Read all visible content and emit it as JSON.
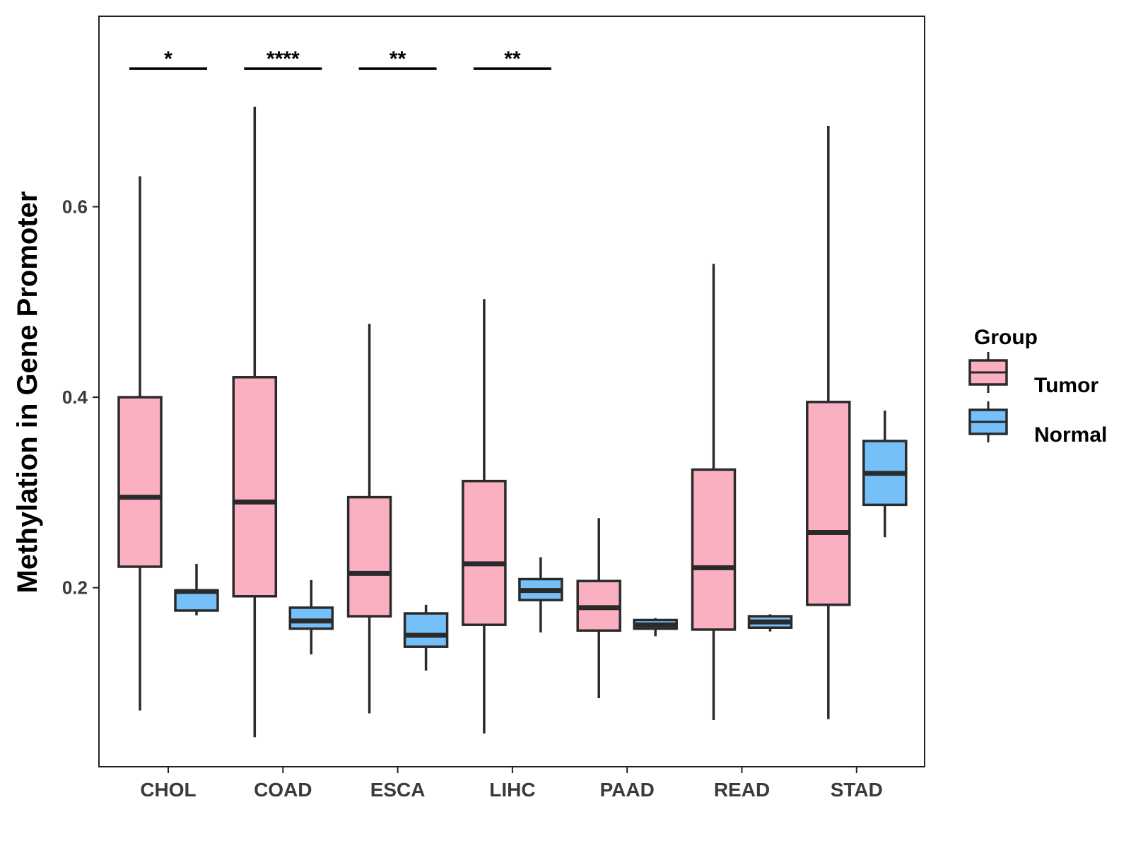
{
  "chart_data": {
    "type": "boxplot",
    "title": "",
    "xlabel": "",
    "ylabel": "Methylation in Gene Promoter",
    "ylim": [
      0.012,
      0.8
    ],
    "yticks": [
      {
        "value": 0.2,
        "label": "0.2"
      },
      {
        "value": 0.4,
        "label": "0.4"
      },
      {
        "value": 0.6,
        "label": "0.6"
      }
    ],
    "categories": [
      "CHOL",
      "COAD",
      "ESCA",
      "LIHC",
      "PAAD",
      "READ",
      "STAD"
    ],
    "legend": {
      "title": "Group",
      "position": "right",
      "entries": [
        {
          "label": "Tumor",
          "color": "#fbb0c2"
        },
        {
          "label": "Normal",
          "color": "#75c0f9"
        }
      ]
    },
    "series": [
      {
        "name": "Tumor",
        "color": "#fbb0c2",
        "boxes": [
          {
            "min": 0.071,
            "q1": 0.222,
            "median": 0.295,
            "q3": 0.4,
            "max": 0.632
          },
          {
            "min": 0.043,
            "q1": 0.191,
            "median": 0.29,
            "q3": 0.421,
            "max": 0.705
          },
          {
            "min": 0.068,
            "q1": 0.17,
            "median": 0.215,
            "q3": 0.295,
            "max": 0.477
          },
          {
            "min": 0.047,
            "q1": 0.161,
            "median": 0.225,
            "q3": 0.312,
            "max": 0.503
          },
          {
            "min": 0.084,
            "q1": 0.155,
            "median": 0.179,
            "q3": 0.207,
            "max": 0.273
          },
          {
            "min": 0.061,
            "q1": 0.156,
            "median": 0.221,
            "q3": 0.324,
            "max": 0.54
          },
          {
            "min": 0.062,
            "q1": 0.182,
            "median": 0.258,
            "q3": 0.395,
            "max": 0.685
          }
        ]
      },
      {
        "name": "Normal",
        "color": "#75c0f9",
        "boxes": [
          {
            "min": 0.171,
            "q1": 0.176,
            "median": 0.196,
            "q3": 0.197,
            "max": 0.225
          },
          {
            "min": 0.13,
            "q1": 0.157,
            "median": 0.165,
            "q3": 0.179,
            "max": 0.208
          },
          {
            "min": 0.113,
            "q1": 0.138,
            "median": 0.15,
            "q3": 0.173,
            "max": 0.182
          },
          {
            "min": 0.153,
            "q1": 0.187,
            "median": 0.197,
            "q3": 0.209,
            "max": 0.232
          },
          {
            "min": 0.149,
            "q1": 0.157,
            "median": 0.161,
            "q3": 0.166,
            "max": 0.168
          },
          {
            "min": 0.154,
            "q1": 0.158,
            "median": 0.164,
            "q3": 0.17,
            "max": 0.172
          },
          {
            "min": 0.253,
            "q1": 0.287,
            "median": 0.32,
            "q3": 0.354,
            "max": 0.386
          }
        ]
      }
    ],
    "annotations": [
      {
        "category": "CHOL",
        "label": "*",
        "y": 0.745
      },
      {
        "category": "COAD",
        "label": "****",
        "y": 0.745
      },
      {
        "category": "ESCA",
        "label": "**",
        "y": 0.745
      },
      {
        "category": "LIHC",
        "label": "**",
        "y": 0.745
      }
    ]
  }
}
